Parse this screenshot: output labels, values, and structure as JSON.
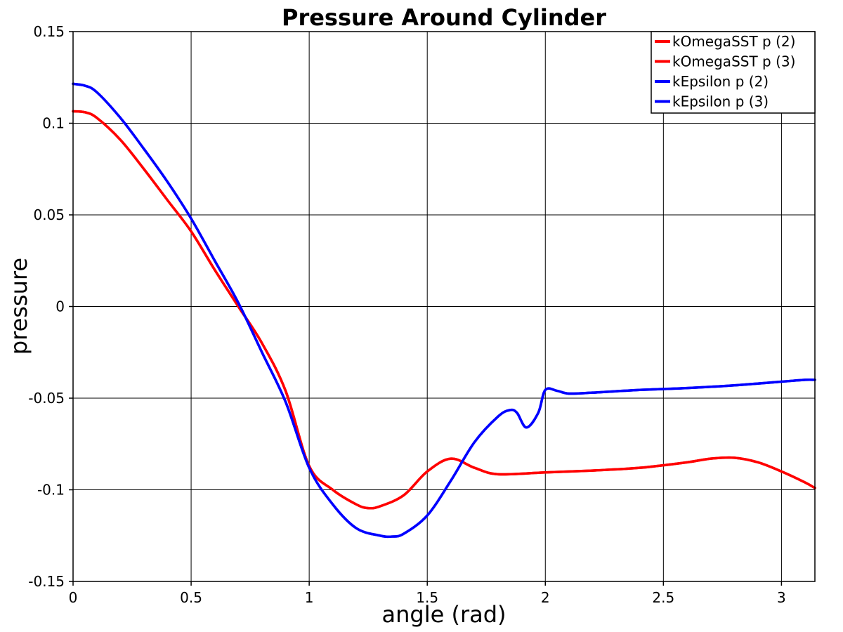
{
  "chart_data": {
    "type": "line",
    "title": "Pressure Around Cylinder",
    "xlabel": "angle (rad)",
    "ylabel": "pressure",
    "xlim": [
      0,
      3.1416
    ],
    "ylim": [
      -0.15,
      0.15
    ],
    "x_ticks": [
      0,
      0.5,
      1,
      1.5,
      2,
      2.5,
      3
    ],
    "x_tick_labels": [
      "0",
      "0.5",
      "1",
      "1.5",
      "2",
      "2.5",
      "3"
    ],
    "y_ticks": [
      0.15,
      0.1,
      0.05,
      0,
      -0.05,
      -0.1,
      -0.15
    ],
    "y_tick_labels": [
      "0.15",
      "0.1",
      "0.05",
      "0",
      "-0.05",
      "-0.1",
      "-0.15"
    ],
    "grid": true,
    "legend_position": "top-right",
    "legend": [
      {
        "label": "kOmegaSST p (2)",
        "color": "#ff0000"
      },
      {
        "label": "kOmegaSST p (3)",
        "color": "#ff0000"
      },
      {
        "label": "kEpsilon p (2)",
        "color": "#0000ff"
      },
      {
        "label": "kEpsilon p (3)",
        "color": "#0000ff"
      }
    ],
    "series": [
      {
        "name": "kOmegaSST p (2)",
        "color": "#ff0000",
        "x": [
          0,
          0.05,
          0.1,
          0.2,
          0.3,
          0.4,
          0.5,
          0.6,
          0.7,
          0.8,
          0.9,
          1.0,
          1.1,
          1.2,
          1.25,
          1.3,
          1.4,
          1.5,
          1.6,
          1.7,
          1.8,
          2.0,
          2.2,
          2.4,
          2.6,
          2.7,
          2.8,
          2.9,
          3.0,
          3.1,
          3.1416
        ],
        "y": [
          0.1065,
          0.106,
          0.103,
          0.091,
          0.075,
          0.058,
          0.041,
          0.02,
          0.0,
          -0.02,
          -0.046,
          -0.087,
          -0.1,
          -0.108,
          -0.11,
          -0.109,
          -0.103,
          -0.09,
          -0.083,
          -0.088,
          -0.0915,
          -0.0905,
          -0.0895,
          -0.088,
          -0.085,
          -0.083,
          -0.0825,
          -0.085,
          -0.09,
          -0.096,
          -0.099
        ]
      },
      {
        "name": "kOmegaSST p (3)",
        "color": "#ff0000",
        "x": [
          0,
          0.05,
          0.1,
          0.2,
          0.3,
          0.4,
          0.5,
          0.6,
          0.7,
          0.8,
          0.9,
          1.0,
          1.1,
          1.2,
          1.25,
          1.3,
          1.4,
          1.5,
          1.6,
          1.7,
          1.8,
          2.0,
          2.2,
          2.4,
          2.6,
          2.7,
          2.8,
          2.9,
          3.0,
          3.1,
          3.1416
        ],
        "y": [
          0.1065,
          0.106,
          0.103,
          0.091,
          0.075,
          0.058,
          0.041,
          0.02,
          0.0,
          -0.02,
          -0.046,
          -0.087,
          -0.1,
          -0.108,
          -0.11,
          -0.109,
          -0.103,
          -0.09,
          -0.083,
          -0.088,
          -0.0915,
          -0.0905,
          -0.0895,
          -0.088,
          -0.085,
          -0.083,
          -0.0825,
          -0.085,
          -0.09,
          -0.096,
          -0.099
        ]
      },
      {
        "name": "kEpsilon p (2)",
        "color": "#0000ff",
        "x": [
          0,
          0.05,
          0.1,
          0.2,
          0.3,
          0.4,
          0.5,
          0.6,
          0.7,
          0.8,
          0.9,
          1.0,
          1.1,
          1.2,
          1.3,
          1.35,
          1.4,
          1.5,
          1.6,
          1.7,
          1.8,
          1.85,
          1.88,
          1.92,
          1.97,
          2.0,
          2.05,
          2.1,
          2.2,
          2.4,
          2.6,
          2.8,
          3.0,
          3.1,
          3.1416
        ],
        "y": [
          0.1215,
          0.1205,
          0.117,
          0.103,
          0.086,
          0.068,
          0.048,
          0.025,
          0.002,
          -0.025,
          -0.052,
          -0.088,
          -0.108,
          -0.121,
          -0.125,
          -0.1255,
          -0.124,
          -0.114,
          -0.095,
          -0.074,
          -0.06,
          -0.0565,
          -0.058,
          -0.066,
          -0.058,
          -0.0455,
          -0.046,
          -0.0475,
          -0.047,
          -0.0455,
          -0.0445,
          -0.043,
          -0.041,
          -0.04,
          -0.04
        ]
      },
      {
        "name": "kEpsilon p (3)",
        "color": "#0000ff",
        "x": [
          0,
          0.05,
          0.1,
          0.2,
          0.3,
          0.4,
          0.5,
          0.6,
          0.7,
          0.8,
          0.9,
          1.0,
          1.1,
          1.2,
          1.3,
          1.35,
          1.4,
          1.5,
          1.6,
          1.7,
          1.8,
          1.85,
          1.88,
          1.92,
          1.97,
          2.0,
          2.05,
          2.1,
          2.2,
          2.4,
          2.6,
          2.8,
          3.0,
          3.1,
          3.1416
        ],
        "y": [
          0.1215,
          0.1205,
          0.117,
          0.103,
          0.086,
          0.068,
          0.048,
          0.025,
          0.002,
          -0.025,
          -0.052,
          -0.088,
          -0.108,
          -0.121,
          -0.125,
          -0.1255,
          -0.124,
          -0.114,
          -0.095,
          -0.074,
          -0.06,
          -0.0565,
          -0.058,
          -0.066,
          -0.058,
          -0.0455,
          -0.046,
          -0.0475,
          -0.047,
          -0.0455,
          -0.0445,
          -0.043,
          -0.041,
          -0.04,
          -0.04
        ]
      }
    ]
  }
}
